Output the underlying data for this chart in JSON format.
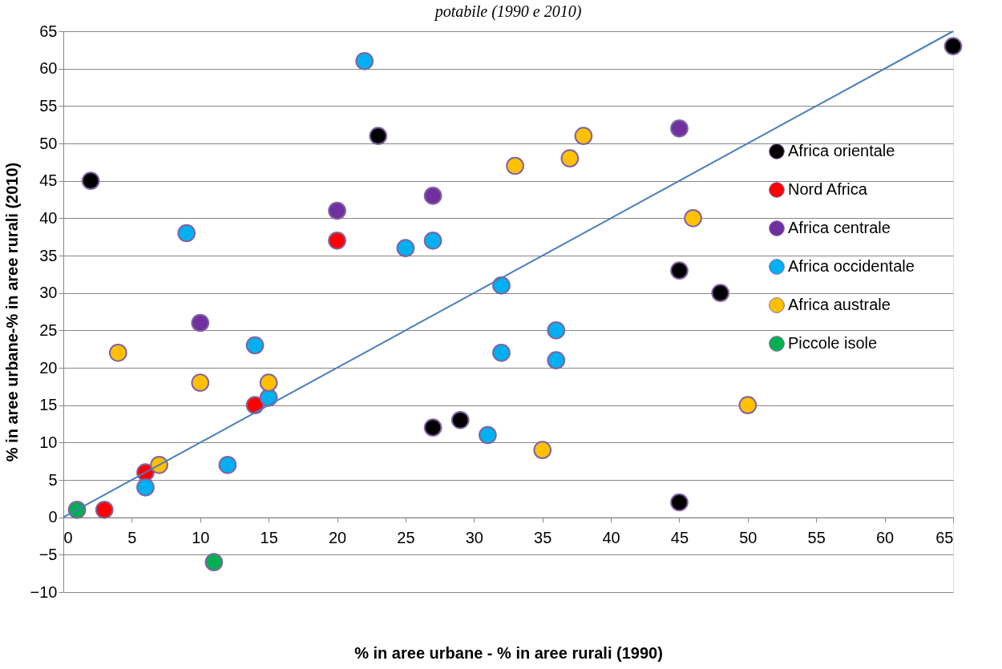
{
  "chart_data": {
    "type": "scatter",
    "title": "potabile (1990 e 2010)",
    "xlabel": "% in aree urbane - % in aree rurali (1990)",
    "ylabel": "% in aree urbane-% in aree rurali (2010)",
    "xlim": [
      0,
      65
    ],
    "xticks": [
      0,
      5,
      10,
      15,
      20,
      25,
      30,
      35,
      40,
      45,
      50,
      55,
      60,
      65
    ],
    "ylim": [
      -10,
      65
    ],
    "yticks": [
      -10,
      -5,
      0,
      5,
      10,
      15,
      20,
      25,
      30,
      35,
      40,
      45,
      50,
      55,
      60,
      65
    ],
    "grid": "y",
    "legend": "right",
    "marker": "circle",
    "series": [
      {
        "name": "Africa orientale",
        "color": "#000000",
        "x": [
          2,
          23,
          27,
          29,
          45,
          48,
          45,
          65
        ],
        "values": [
          45,
          51,
          12,
          13,
          33,
          30,
          2,
          63
        ]
      },
      {
        "name": "Nord Africa",
        "color": "#ff0000",
        "x": [
          3,
          6,
          14,
          20
        ],
        "values": [
          1,
          6,
          15,
          37
        ]
      },
      {
        "name": "Africa centrale",
        "color": "#7030a0",
        "x": [
          10,
          20,
          27,
          45
        ],
        "values": [
          26,
          41,
          43,
          52
        ]
      },
      {
        "name": "Africa occidentale",
        "color": "#00b0f0",
        "x": [
          22,
          9,
          25,
          27,
          32,
          14,
          15,
          6,
          12,
          31,
          32,
          36,
          36
        ],
        "values": [
          61,
          38,
          36,
          37,
          31,
          23,
          16,
          4,
          7,
          11,
          22,
          25,
          21
        ]
      },
      {
        "name": "Africa australe",
        "color": "#ffc000",
        "x": [
          4,
          10,
          15,
          7,
          33,
          37,
          38,
          46,
          50,
          35
        ],
        "values": [
          22,
          18,
          18,
          7,
          47,
          48,
          51,
          40,
          15,
          9
        ]
      },
      {
        "name": "Piccole isole",
        "color": "#00b050",
        "x": [
          1,
          11
        ],
        "values": [
          1,
          -6
        ]
      },
      {
        "type": "line",
        "marker": "none",
        "color": "#4a7ebb",
        "x": [
          0,
          65
        ],
        "values": [
          0,
          65
        ]
      }
    ]
  }
}
